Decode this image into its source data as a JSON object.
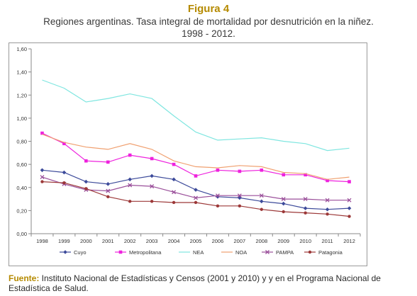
{
  "header": {
    "figure_label": "Figura 4",
    "title_line1": "Regiones argentinas. Tasa integral de mortalidad por desnutrición en la niñez.",
    "title_line2": "1998 - 2012."
  },
  "footer": {
    "source_label": "Fuente:",
    "source_text": " Instituto Nacional de Estadísticas y Censos (2001 y 2010) y y en el Programa Nacional de Estadística de Salud."
  },
  "chart_data": {
    "type": "line",
    "title": "",
    "xlabel": "",
    "ylabel": "",
    "x": [
      "1998",
      "1999",
      "2000",
      "2001",
      "2002",
      "2003",
      "2004",
      "2005",
      "2006",
      "2007",
      "2008",
      "2009",
      "2010",
      "2011",
      "2012"
    ],
    "ylim": [
      0,
      1.6
    ],
    "ytick_step": 0.2,
    "ytick_labels": [
      "0,00",
      "0,20",
      "0,40",
      "0,60",
      "0,80",
      "1,00",
      "1,20",
      "1,40",
      "1,60"
    ],
    "grid": false,
    "legend_position": "bottom",
    "series": [
      {
        "name": "Cuyo",
        "color": "#3c4a9a",
        "marker": "diamond",
        "values": [
          0.55,
          0.53,
          0.45,
          0.43,
          0.47,
          0.5,
          0.47,
          0.38,
          0.32,
          0.31,
          0.28,
          0.26,
          0.22,
          0.21,
          0.22
        ]
      },
      {
        "name": "Metropolitana",
        "color": "#ee22dd",
        "marker": "square",
        "values": [
          0.87,
          0.78,
          0.63,
          0.62,
          0.68,
          0.65,
          0.6,
          0.5,
          0.55,
          0.54,
          0.55,
          0.51,
          0.51,
          0.46,
          0.45
        ]
      },
      {
        "name": "NEA",
        "color": "#7fe6e0",
        "marker": "none",
        "values": [
          1.33,
          1.26,
          1.14,
          1.17,
          1.21,
          1.17,
          1.02,
          0.88,
          0.81,
          0.82,
          0.83,
          0.8,
          0.78,
          0.72,
          0.74
        ]
      },
      {
        "name": "NOA",
        "color": "#f0a070",
        "marker": "none",
        "values": [
          0.86,
          0.79,
          0.75,
          0.73,
          0.78,
          0.73,
          0.63,
          0.58,
          0.57,
          0.59,
          0.58,
          0.53,
          0.52,
          0.47,
          0.49
        ]
      },
      {
        "name": "PAMPA",
        "color": "#9a4f9a",
        "marker": "x",
        "values": [
          0.49,
          0.43,
          0.38,
          0.37,
          0.42,
          0.41,
          0.36,
          0.31,
          0.33,
          0.33,
          0.33,
          0.3,
          0.3,
          0.29,
          0.29
        ]
      },
      {
        "name": "Patagonia",
        "color": "#9c3838",
        "marker": "circle",
        "values": [
          0.45,
          0.44,
          0.39,
          0.32,
          0.28,
          0.28,
          0.27,
          0.27,
          0.24,
          0.24,
          0.21,
          0.19,
          0.18,
          0.17,
          0.15
        ]
      }
    ]
  }
}
